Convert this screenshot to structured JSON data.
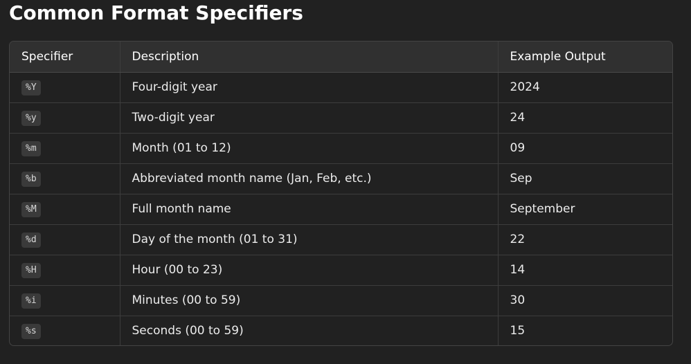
{
  "page": {
    "title": "Common Format Specifiers"
  },
  "table": {
    "headers": [
      "Specifier",
      "Description",
      "Example Output"
    ],
    "rows": [
      {
        "specifier": "%Y",
        "description": "Four-digit year",
        "example": "2024"
      },
      {
        "specifier": "%y",
        "description": "Two-digit year",
        "example": "24"
      },
      {
        "specifier": "%m",
        "description": "Month (01 to 12)",
        "example": "09"
      },
      {
        "specifier": "%b",
        "description": "Abbreviated month name (Jan, Feb, etc.)",
        "example": "Sep"
      },
      {
        "specifier": "%M",
        "description": "Full month name",
        "example": "September"
      },
      {
        "specifier": "%d",
        "description": "Day of the month (01 to 31)",
        "example": "22"
      },
      {
        "specifier": "%H",
        "description": "Hour (00 to 23)",
        "example": "14"
      },
      {
        "specifier": "%i",
        "description": "Minutes (00 to 59)",
        "example": "30"
      },
      {
        "specifier": "%s",
        "description": "Seconds (00 to 59)",
        "example": "15"
      }
    ]
  },
  "colors": {
    "background": "#212121",
    "header_background": "#303030",
    "code_background": "#3a3a3a",
    "border": "#3d3d3d",
    "text": "#ececec"
  }
}
